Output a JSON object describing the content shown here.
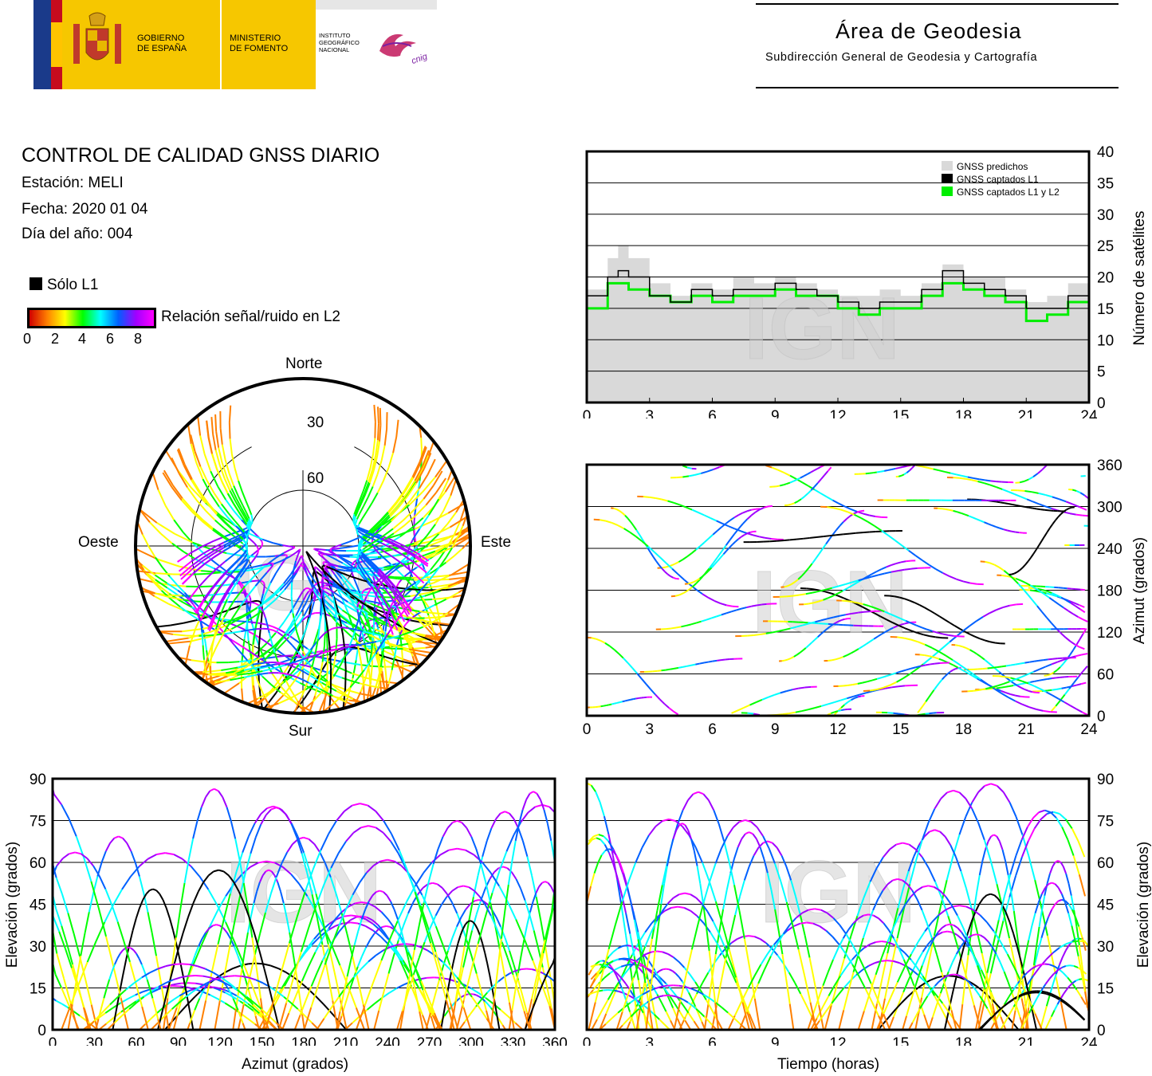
{
  "header": {
    "org_gobierno": [
      "GOBIERNO",
      "DE ESPAÑA"
    ],
    "org_ministerio": [
      "MINISTERIO",
      "DE FOMENTO"
    ],
    "org_ign": [
      "INSTITUTO",
      "GEOGRÁFICO",
      "NACIONAL"
    ],
    "cnig": "cnig",
    "area_title": "Área de Geodesia",
    "area_subtitle": "Subdirección General de Geodesia y Cartografía"
  },
  "report": {
    "title": "CONTROL DE CALIDAD GNSS DIARIO",
    "station": "Estación: MELI",
    "date": "Fecha: 2020 01 04",
    "doy": "Día del año: 004"
  },
  "legend": {
    "l1_only": "Sólo L1",
    "snr_label": "Relación señal/ruido en L2",
    "snr_ticks": [
      "0",
      "2",
      "4",
      "6",
      "8"
    ]
  },
  "watermark": "IGN",
  "colors": {
    "l1_only": "#000000",
    "predicted": "#d9d9d9",
    "l1": "#000000",
    "l1l2": "#00ee00",
    "snr_gradient": [
      "#d00000",
      "#ff8000",
      "#ffff00",
      "#00ff00",
      "#00ffff",
      "#0060ff",
      "#a000ff",
      "#ff00ff"
    ]
  },
  "chart_data": [
    {
      "id": "skyplot",
      "type": "scatter",
      "title": "",
      "directions": {
        "north": "Norte",
        "south": "Sur",
        "west": "Oeste",
        "east": "Este"
      },
      "rings": [
        "30",
        "60"
      ],
      "note": "polar sky plot of satellite tracks colored by L2 SNR"
    },
    {
      "id": "sat-count",
      "type": "area",
      "xlabel": "",
      "ylabel": "Número de satélites",
      "xlim": [
        0,
        24
      ],
      "ylim": [
        0,
        40
      ],
      "xticks": [
        "0",
        "3",
        "6",
        "9",
        "12",
        "15",
        "18",
        "21",
        "24"
      ],
      "yticks": [
        "0",
        "5",
        "10",
        "15",
        "20",
        "25",
        "30",
        "35",
        "40"
      ],
      "legend": [
        "GNSS predichos",
        "GNSS captados L1",
        "GNSS captados L1 y L2"
      ],
      "legend_position": "top-right",
      "x": [
        0,
        1,
        1.5,
        2,
        3,
        4,
        5,
        6,
        7,
        8,
        9,
        10,
        11,
        12,
        13,
        14,
        15,
        16,
        17,
        18,
        19,
        20,
        21,
        22,
        23,
        24
      ],
      "series": [
        {
          "name": "GNSS predichos",
          "values": [
            18,
            23,
            25,
            23,
            19,
            17,
            19,
            18,
            20,
            19,
            20,
            19,
            18,
            17,
            17,
            18,
            17,
            19,
            22,
            20,
            20,
            18,
            16,
            17,
            19,
            18
          ]
        },
        {
          "name": "GNSS captados L1",
          "values": [
            17,
            20,
            21,
            20,
            17,
            16,
            18,
            17,
            18,
            18,
            19,
            18,
            17,
            16,
            15,
            16,
            16,
            18,
            21,
            19,
            18,
            17,
            15,
            15,
            17,
            17
          ]
        },
        {
          "name": "GNSS captados L1 y L2",
          "values": [
            15,
            19,
            19,
            18,
            17,
            16,
            17,
            16,
            17,
            17,
            18,
            17,
            17,
            15,
            14,
            15,
            15,
            17,
            19,
            18,
            17,
            16,
            13,
            14,
            16,
            15
          ]
        }
      ]
    },
    {
      "id": "azimuth-time",
      "type": "scatter",
      "ylabel": "Azimut (grados)",
      "xlim": [
        0,
        24
      ],
      "ylim": [
        0,
        360
      ],
      "xticks": [
        "0",
        "3",
        "6",
        "9",
        "12",
        "15",
        "18",
        "21",
        "24"
      ],
      "yticks": [
        "0",
        "60",
        "120",
        "180",
        "240",
        "300",
        "360"
      ]
    },
    {
      "id": "elevation-azimuth",
      "type": "scatter",
      "xlabel": "Azimut (grados)",
      "ylabel": "Elevación (grados)",
      "xlim": [
        0,
        360
      ],
      "ylim": [
        0,
        90
      ],
      "xticks": [
        "0",
        "30",
        "60",
        "90",
        "120",
        "150",
        "180",
        "210",
        "240",
        "270",
        "300",
        "330",
        "360"
      ],
      "yticks": [
        "0",
        "15",
        "30",
        "45",
        "60",
        "75",
        "90"
      ]
    },
    {
      "id": "elevation-time",
      "type": "scatter",
      "xlabel": "Tiempo (horas)",
      "ylabel": "Elevación (grados)",
      "xlim": [
        0,
        24
      ],
      "ylim": [
        0,
        90
      ],
      "xticks": [
        "0",
        "3",
        "6",
        "9",
        "12",
        "15",
        "18",
        "21",
        "24"
      ],
      "yticks": [
        "0",
        "15",
        "30",
        "45",
        "60",
        "75",
        "90"
      ]
    }
  ]
}
